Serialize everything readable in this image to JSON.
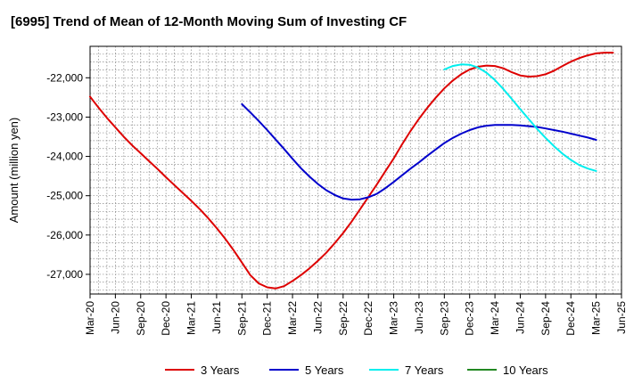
{
  "chart_data": {
    "type": "line",
    "title": "[6995]  Trend of Mean of 12-Month Moving Sum of Investing CF",
    "xlabel": "",
    "ylabel": "Amount (million yen)",
    "ylim": [
      -27500,
      -21200
    ],
    "yticks": [
      -22000,
      -23000,
      -24000,
      -25000,
      -26000,
      -27000
    ],
    "ytick_labels": [
      "-22,000",
      "-23,000",
      "-24,000",
      "-25,000",
      "-26,000",
      "-27,000"
    ],
    "x_start": "Mar-20",
    "x_end": "Jun-25",
    "xtick_labels": [
      "Mar-20",
      "Jun-20",
      "Sep-20",
      "Dec-20",
      "Mar-21",
      "Jun-21",
      "Sep-21",
      "Dec-21",
      "Mar-22",
      "Jun-22",
      "Sep-22",
      "Dec-22",
      "Mar-23",
      "Jun-23",
      "Sep-23",
      "Dec-23",
      "Mar-24",
      "Jun-24",
      "Sep-24",
      "Dec-24",
      "Mar-25",
      "Jun-25"
    ],
    "grid": true,
    "legend_position": "bottom",
    "series": [
      {
        "name": "3 Years",
        "color": "#dd0000",
        "start_month_index": 0,
        "values": [
          -22480,
          -22760,
          -23020,
          -23260,
          -23500,
          -23720,
          -23920,
          -24120,
          -24320,
          -24530,
          -24730,
          -24930,
          -25130,
          -25340,
          -25570,
          -25820,
          -26090,
          -26380,
          -26700,
          -27020,
          -27230,
          -27330,
          -27360,
          -27300,
          -27170,
          -27020,
          -26850,
          -26660,
          -26450,
          -26210,
          -25950,
          -25660,
          -25350,
          -25030,
          -24710,
          -24380,
          -24050,
          -23690,
          -23350,
          -23040,
          -22760,
          -22500,
          -22270,
          -22070,
          -21910,
          -21790,
          -21720,
          -21690,
          -21700,
          -21760,
          -21860,
          -21940,
          -21970,
          -21960,
          -21910,
          -21820,
          -21700,
          -21590,
          -21500,
          -21430,
          -21380,
          -21360,
          -21360
        ]
      },
      {
        "name": "5 Years",
        "color": "#0000cc",
        "start_month_index": 18,
        "values": [
          -22670,
          -22880,
          -23100,
          -23330,
          -23570,
          -23810,
          -24060,
          -24300,
          -24510,
          -24700,
          -24860,
          -24980,
          -25070,
          -25100,
          -25090,
          -25040,
          -24950,
          -24810,
          -24650,
          -24480,
          -24310,
          -24150,
          -23980,
          -23820,
          -23660,
          -23530,
          -23420,
          -23330,
          -23260,
          -23220,
          -23200,
          -23200,
          -23200,
          -23210,
          -23230,
          -23250,
          -23290,
          -23330,
          -23370,
          -23420,
          -23470,
          -23520,
          -23580
        ]
      },
      {
        "name": "7 Years",
        "color": "#00eeee",
        "start_month_index": 42,
        "values": [
          -21790,
          -21700,
          -21660,
          -21670,
          -21740,
          -21870,
          -22060,
          -22290,
          -22540,
          -22800,
          -23050,
          -23300,
          -23530,
          -23740,
          -23930,
          -24090,
          -24220,
          -24310,
          -24370
        ]
      },
      {
        "name": "10 Years",
        "color": "#228822",
        "start_month_index": 0,
        "values": []
      }
    ]
  }
}
